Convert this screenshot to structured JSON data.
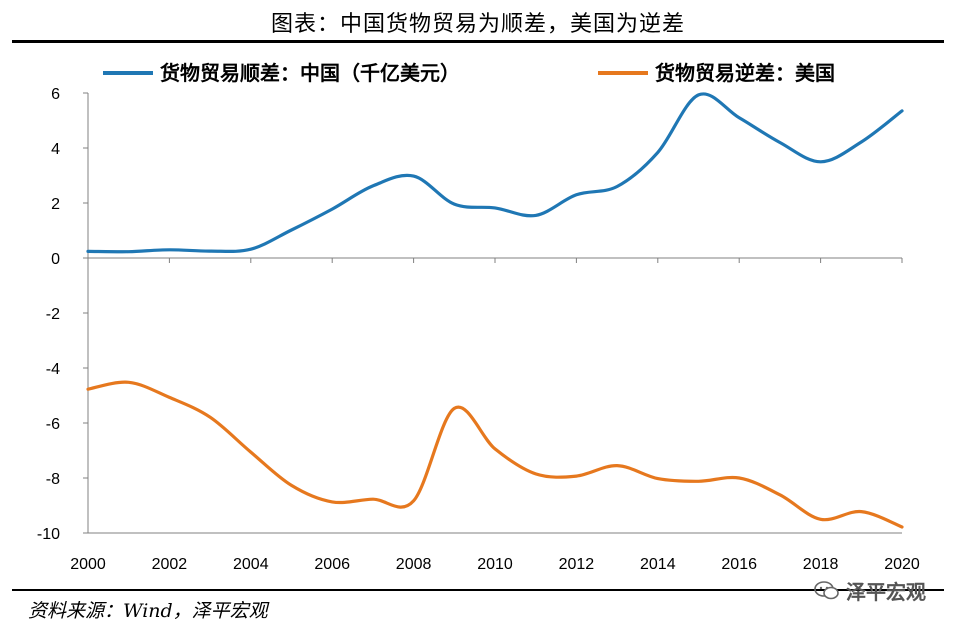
{
  "header": {
    "title": "图表：中国货物贸易为顺差，美国为逆差"
  },
  "footer": {
    "source": "资料来源：Wind，泽平宏观",
    "watermark": "泽平宏观"
  },
  "icons": {
    "watermark_icon": "wechat-icon"
  },
  "chart_data": {
    "type": "line",
    "title": "",
    "xlabel": "",
    "ylabel": "",
    "ylim": [
      -10,
      6
    ],
    "xlim": [
      2000,
      2020
    ],
    "y_ticks": [
      6,
      4,
      2,
      0,
      -2,
      -4,
      -6,
      -8,
      -10
    ],
    "x_ticks": [
      2000,
      2002,
      2004,
      2006,
      2008,
      2010,
      2012,
      2014,
      2016,
      2018,
      2020
    ],
    "grid": false,
    "legend_position": "top",
    "x": [
      2000,
      2001,
      2002,
      2003,
      2004,
      2005,
      2006,
      2007,
      2008,
      2009,
      2010,
      2011,
      2012,
      2013,
      2014,
      2015,
      2016,
      2017,
      2018,
      2019,
      2020
    ],
    "series": [
      {
        "name": "货物贸易顺差：中国（千亿美元）",
        "color": "#1f77b4",
        "values": [
          0.24,
          0.23,
          0.3,
          0.25,
          0.32,
          1.02,
          1.78,
          2.62,
          2.98,
          1.96,
          1.82,
          1.55,
          2.3,
          2.6,
          3.84,
          5.93,
          5.1,
          4.2,
          3.5,
          4.22,
          5.35
        ]
      },
      {
        "name": "货物贸易逆差：美国",
        "color": "#e6781e",
        "values": [
          -4.77,
          -4.52,
          -5.07,
          -5.79,
          -7.06,
          -8.27,
          -8.87,
          -8.77,
          -8.83,
          -5.47,
          -6.94,
          -7.85,
          -7.93,
          -7.55,
          -8.02,
          -8.12,
          -8.0,
          -8.61,
          -9.5,
          -9.22,
          -9.78
        ]
      }
    ]
  }
}
